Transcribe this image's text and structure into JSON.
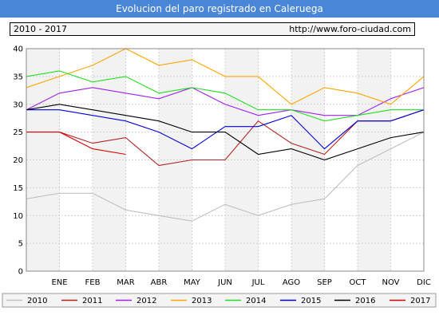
{
  "header": {
    "title": "Evolucion del paro registrado en Caleruega",
    "years_range": "2010 - 2017",
    "url": "http://www.foro-ciudad.com"
  },
  "chart_data": {
    "type": "line",
    "title": "Evolucion del paro registrado en Caleruega",
    "categories": [
      "DIC",
      "ENE",
      "FEB",
      "MAR",
      "ABR",
      "MAY",
      "JUN",
      "JUL",
      "AGO",
      "SEP",
      "OCT",
      "NOV",
      "DIC"
    ],
    "x_tick_labels": [
      "ENE",
      "FEB",
      "MAR",
      "ABR",
      "MAY",
      "JUN",
      "JUL",
      "AGO",
      "SEP",
      "OCT",
      "NOV",
      "DIC"
    ],
    "y_ticks": [
      "0",
      "5",
      "10",
      "15",
      "20",
      "25",
      "30",
      "35",
      "40"
    ],
    "ylim": [
      0,
      40
    ],
    "grid": true,
    "legend_position": "bottom",
    "series": [
      {
        "name": "2010",
        "color": "#c0c0c0",
        "values": [
          13,
          14,
          14,
          11,
          10,
          9,
          12,
          10,
          12,
          13,
          19,
          22,
          25
        ]
      },
      {
        "name": "2011",
        "color": "#b22222",
        "values": [
          25,
          25,
          23,
          24,
          19,
          20,
          20,
          27,
          23,
          21,
          27,
          27,
          29
        ]
      },
      {
        "name": "2012",
        "color": "#a020f0",
        "values": [
          29,
          32,
          33,
          32,
          31,
          33,
          30,
          28,
          29,
          28,
          28,
          31,
          33
        ]
      },
      {
        "name": "2013",
        "color": "#ffa500",
        "values": [
          33,
          35,
          37,
          40,
          37,
          38,
          35,
          35,
          30,
          33,
          32,
          30,
          35
        ]
      },
      {
        "name": "2014",
        "color": "#22dd22",
        "values": [
          35,
          36,
          34,
          35,
          32,
          33,
          32,
          29,
          29,
          27,
          28,
          29,
          29
        ]
      },
      {
        "name": "2015",
        "color": "#0000dd",
        "values": [
          29,
          29,
          28,
          27,
          25,
          22,
          26,
          26,
          28,
          22,
          27,
          27,
          29
        ]
      },
      {
        "name": "2016",
        "color": "#000000",
        "values": [
          29,
          30,
          29,
          28,
          27,
          25,
          25,
          21,
          22,
          20,
          22,
          24,
          25
        ]
      },
      {
        "name": "2017",
        "color": "#dd0000",
        "values": [
          25,
          25,
          22,
          21,
          null,
          null,
          null,
          null,
          null,
          null,
          null,
          null,
          null
        ]
      }
    ]
  }
}
